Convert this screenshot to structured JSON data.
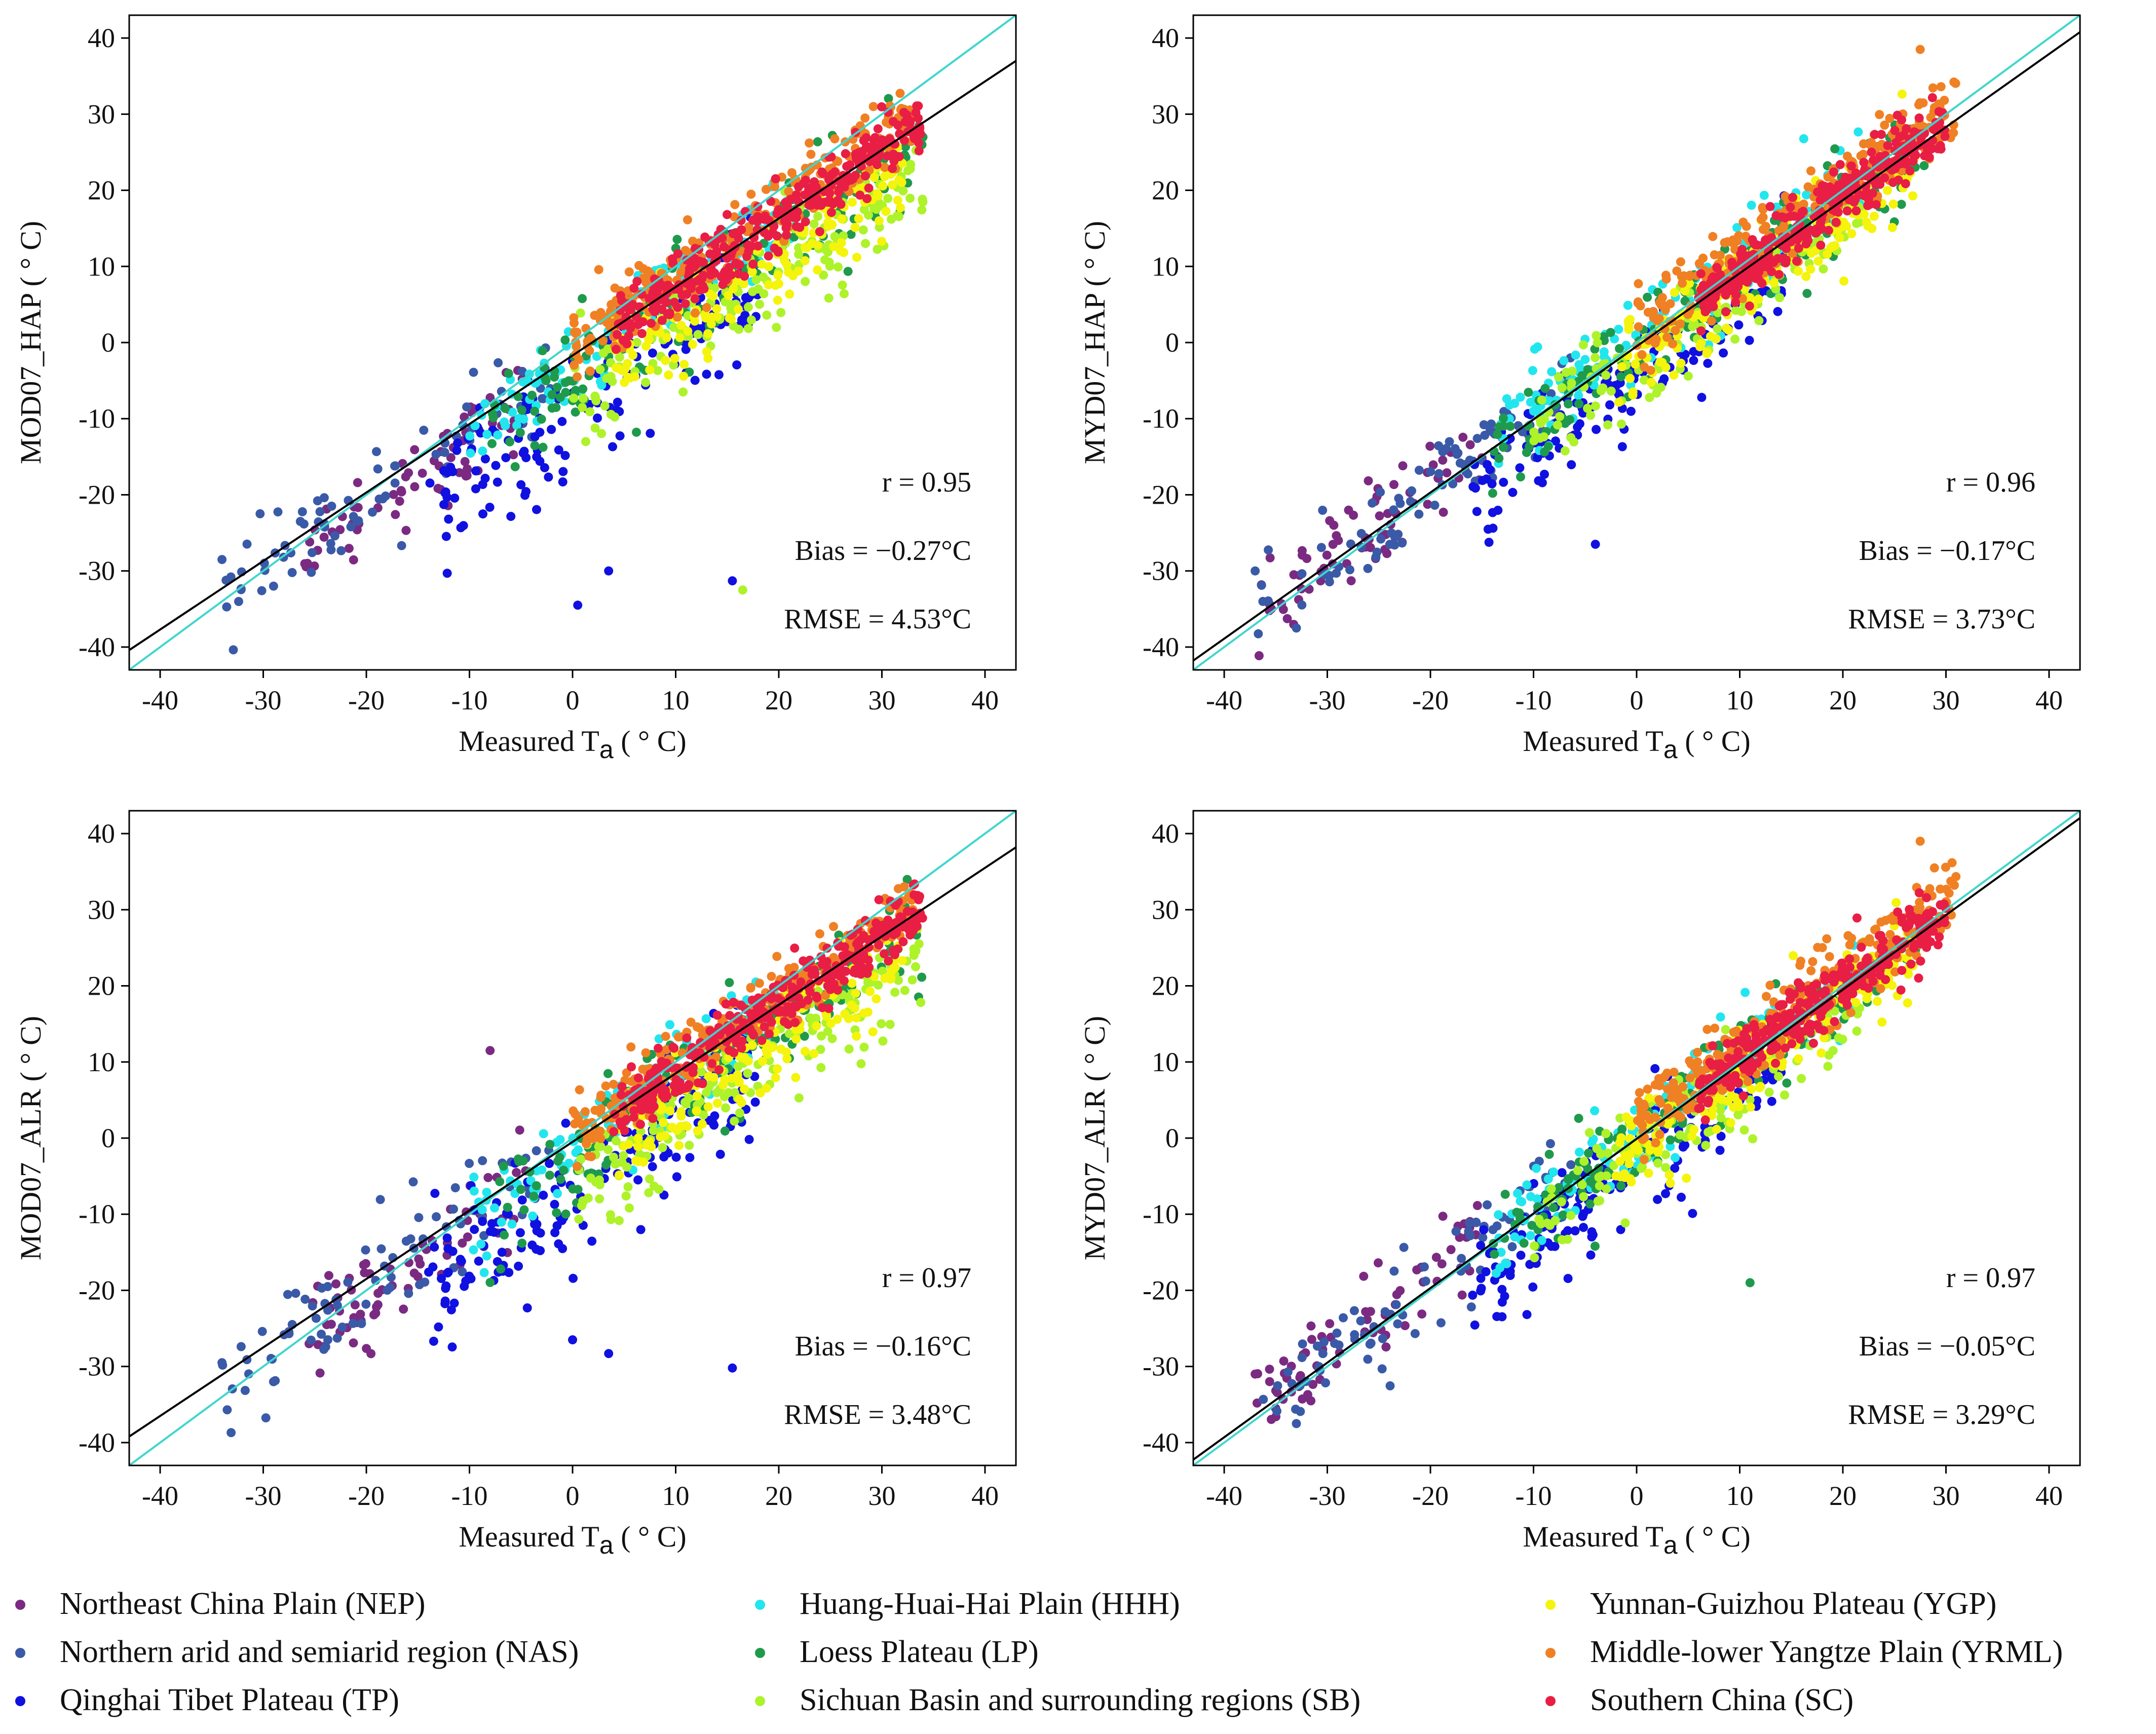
{
  "figure": {
    "legend": [
      {
        "label": "Northeast China Plain (NEP)",
        "color": "#7b2a82"
      },
      {
        "label": "Northern arid and semiarid region (NAS)",
        "color": "#3a5aa8"
      },
      {
        "label": "Qinghai Tibet Plateau (TP)",
        "color": "#1010e0"
      },
      {
        "label": "Huang-Huai-Hai Plain (HHH)",
        "color": "#22e6ee"
      },
      {
        "label": "Loess Plateau (LP)",
        "color": "#1f9a4c"
      },
      {
        "label": "Sichuan Basin and surrounding regions (SB)",
        "color": "#aef22a"
      },
      {
        "label": "Yunnan-Guizhou Plateau (YGP)",
        "color": "#f4f40c"
      },
      {
        "label": "Middle-lower Yangtze Plain (YRML)",
        "color": "#f08024"
      },
      {
        "label": "Southern China (SC)",
        "color": "#e81e45"
      }
    ],
    "one_to_one_color": "#3fd6cc",
    "fit_color": "#000000"
  },
  "chart_data": [
    {
      "type": "scatter",
      "xlabel": "Measured T",
      "xlabel_sub": "a",
      "xlabel_unit": " ( ° C)",
      "ylabel": "MOD07_HAP ( ° C)",
      "xlim": [
        -43,
        43
      ],
      "ylim": [
        -43,
        43
      ],
      "ticks": [
        -40,
        -30,
        -20,
        -10,
        0,
        10,
        20,
        30,
        40
      ],
      "fit": {
        "slope": 0.9,
        "intercept": -1.7
      },
      "stats": [
        "r = 0.95",
        "Bias = −0.27°C",
        "RMSE = 4.53°C"
      ],
      "notable_points": [
        {
          "x": 0.5,
          "y": -34.5,
          "region": "TP"
        },
        {
          "x": 3.5,
          "y": -30,
          "region": "TP"
        },
        {
          "x": 15.5,
          "y": -31.3,
          "region": "TP"
        },
        {
          "x": -34,
          "y": -28.5,
          "region": "NAS"
        },
        {
          "x": -29,
          "y": -32,
          "region": "NAS"
        },
        {
          "x": 16.5,
          "y": -32.5,
          "region": "SB"
        }
      ]
    },
    {
      "type": "scatter",
      "xlabel": "Measured T",
      "xlabel_sub": "a",
      "xlabel_unit": " ( ° C)",
      "ylabel": "MYD07_HAP ( ° C)",
      "xlim": [
        -43,
        43
      ],
      "ylim": [
        -43,
        43
      ],
      "ticks": [
        -40,
        -30,
        -20,
        -10,
        0,
        10,
        20,
        30,
        40
      ],
      "fit": {
        "slope": 0.96,
        "intercept": -0.5
      },
      "stats": [
        "r = 0.96",
        "Bias = −0.17°C",
        "RMSE = 3.73°C"
      ],
      "notable_points": [
        {
          "x": -37,
          "y": -30,
          "region": "NAS"
        },
        {
          "x": -33,
          "y": -37.5,
          "region": "NAS"
        },
        {
          "x": 27.5,
          "y": 38.5,
          "region": "YRML"
        },
        {
          "x": -4,
          "y": -26.5,
          "region": "TP"
        }
      ]
    },
    {
      "type": "scatter",
      "xlabel": "Measured T",
      "xlabel_sub": "a",
      "xlabel_unit": " ( ° C)",
      "ylabel": "MOD07_ALR ( ° C)",
      "xlim": [
        -43,
        43
      ],
      "ylim": [
        -43,
        43
      ],
      "ticks": [
        -40,
        -30,
        -20,
        -10,
        0,
        10,
        20,
        30,
        40
      ],
      "fit": {
        "slope": 0.9,
        "intercept": -0.5
      },
      "stats": [
        "r = 0.97",
        "Bias = −0.16°C",
        "RMSE = 3.48°C"
      ],
      "notable_points": [
        {
          "x": 0,
          "y": -26.5,
          "region": "TP"
        },
        {
          "x": 3.5,
          "y": -28.3,
          "region": "TP"
        },
        {
          "x": 15.5,
          "y": -30.2,
          "region": "TP"
        },
        {
          "x": -34,
          "y": -29.5,
          "region": "NAS"
        },
        {
          "x": -29,
          "y": -32,
          "region": "NAS"
        },
        {
          "x": -8,
          "y": 11.5,
          "region": "NEP"
        }
      ]
    },
    {
      "type": "scatter",
      "xlabel": "Measured T",
      "xlabel_sub": "a",
      "xlabel_unit": " ( ° C)",
      "ylabel": "MYD07_ALR ( ° C)",
      "xlim": [
        -43,
        43
      ],
      "ylim": [
        -43,
        43
      ],
      "ticks": [
        -40,
        -30,
        -20,
        -10,
        0,
        10,
        20,
        30,
        40
      ],
      "fit": {
        "slope": 0.98,
        "intercept": -0.1
      },
      "stats": [
        "r = 0.97",
        "Bias = −0.05°C",
        "RMSE = 3.29°C"
      ],
      "notable_points": [
        {
          "x": -37,
          "y": -31,
          "region": "NEP"
        },
        {
          "x": -33,
          "y": -37.5,
          "region": "NAS"
        },
        {
          "x": 27.5,
          "y": 39,
          "region": "YRML"
        },
        {
          "x": 11,
          "y": -19,
          "region": "LP"
        }
      ]
    }
  ]
}
